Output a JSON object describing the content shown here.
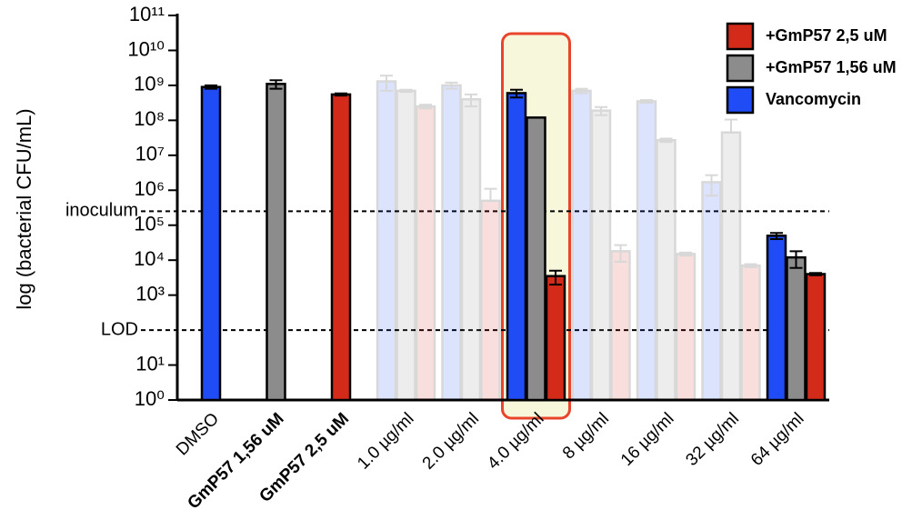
{
  "chart_data": {
    "type": "bar",
    "log_scale": true,
    "y_label": "log (bacterial CFU/mL)",
    "categories": [
      "DMSO",
      "GmP57 1,56 uM",
      "GmP57 2,5 uM",
      "1.0 µg/ml",
      "2.0 µg/ml",
      "4.0 µg/ml",
      "8 µg/ml",
      "16 µg/ml",
      "32 µg/ml",
      "64 µg/ml"
    ],
    "bold": [
      false,
      true,
      true,
      false,
      false,
      false,
      false,
      false,
      false,
      false
    ],
    "faded": [
      false,
      false,
      false,
      true,
      true,
      false,
      true,
      true,
      true,
      false
    ],
    "highlight_category": 5,
    "series": [
      {
        "name": "Vancomycin",
        "color": "#1f4cf5",
        "values": [
          900000000,
          null,
          null,
          1300000000,
          1000000000,
          600000000,
          700000000,
          350000000,
          1700000,
          50000
        ],
        "errors": [
          100000000,
          null,
          null,
          600000000,
          200000000,
          150000000,
          100000000,
          30000000,
          1000000,
          10000
        ]
      },
      {
        "name": "+GmP57 1,56 uM",
        "color": "#8c8c8c",
        "values": [
          null,
          1100000000,
          null,
          700000000,
          400000000,
          120000000,
          190000000,
          27000000,
          45000000,
          12000
        ],
        "errors": [
          null,
          300000000,
          null,
          50000000,
          150000000,
          null,
          50000000,
          3000000,
          60000000,
          6000
        ]
      },
      {
        "name": "+GmP57 2,5 uM",
        "color": "#d42a1a",
        "values": [
          null,
          null,
          550000000,
          250000000,
          500000,
          3500,
          18000,
          15000,
          7000,
          4000
        ],
        "errors": [
          null,
          null,
          40000000,
          30000000,
          600000,
          1500,
          9000,
          1500,
          700,
          300
        ]
      }
    ],
    "reference_lines": [
      {
        "value": 250000,
        "label": "inoculum"
      },
      {
        "value": 100,
        "label": "LOD"
      }
    ],
    "ylim": [
      1,
      100000000000
    ],
    "yticks": [
      {
        "value": 1,
        "label": "10⁰"
      },
      {
        "value": 10,
        "label": "10¹"
      },
      {
        "value": 1000,
        "label": "10³"
      },
      {
        "value": 10000,
        "label": "10⁴"
      },
      {
        "value": 100000,
        "label": "10⁵"
      },
      {
        "value": 1000000,
        "label": "10⁶"
      },
      {
        "value": 10000000,
        "label": "10⁷"
      },
      {
        "value": 100000000,
        "label": "10⁸"
      },
      {
        "value": 1000000000,
        "label": "10⁹"
      },
      {
        "value": 10000000000,
        "label": "10¹⁰"
      },
      {
        "value": 100000000000,
        "label": "10¹¹"
      }
    ]
  }
}
